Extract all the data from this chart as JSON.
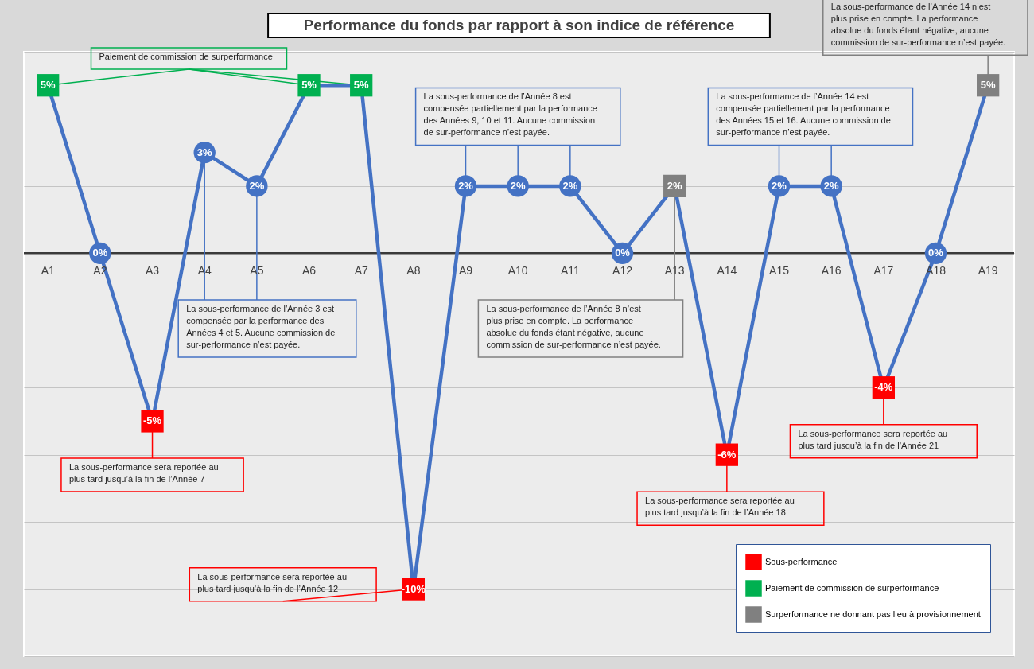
{
  "chart_data": {
    "type": "line",
    "title": "Performance du fonds par rapport à son indice de référence",
    "categories": [
      "A1",
      "A2",
      "A3",
      "A4",
      "A5",
      "A6",
      "A7",
      "A8",
      "A9",
      "A10",
      "A11",
      "A12",
      "A13",
      "A14",
      "A15",
      "A16",
      "A17",
      "A18",
      "A19"
    ],
    "series": [
      {
        "color": "#4472c4",
        "marker": "none",
        "values": [
          5,
          0,
          -5,
          3,
          2,
          5,
          5,
          -10,
          2,
          2,
          2,
          0,
          2,
          -6,
          2,
          2,
          -4,
          0,
          5
        ]
      },
      {
        "type": "scatter",
        "color": "#4472c4",
        "marker": "circle",
        "values": [
          null,
          0,
          null,
          3,
          2,
          null,
          null,
          null,
          2,
          2,
          2,
          0,
          null,
          null,
          2,
          2,
          null,
          0,
          null
        ],
        "value_labels": [
          null,
          "0%",
          null,
          "3%",
          "2%",
          null,
          null,
          null,
          "2%",
          "2%",
          "2%",
          "0%",
          null,
          null,
          "2%",
          "2%",
          null,
          "0%",
          null
        ]
      },
      {
        "type": "scatter",
        "name": "Sous-performance",
        "color": "#ff0000",
        "marker": "square",
        "values": [
          null,
          null,
          -5,
          null,
          null,
          null,
          null,
          -10,
          null,
          null,
          null,
          null,
          null,
          -6,
          null,
          null,
          -4,
          null,
          null
        ],
        "value_labels": [
          null,
          null,
          "-5%",
          null,
          null,
          null,
          null,
          "-10%",
          null,
          null,
          null,
          null,
          null,
          "-6%",
          null,
          null,
          "-4%",
          null,
          null
        ]
      },
      {
        "type": "scatter",
        "name": "Paiement de commission de surperformance",
        "color": "#00b050",
        "marker": "square",
        "values": [
          5,
          null,
          null,
          null,
          null,
          5,
          5,
          null,
          null,
          null,
          null,
          null,
          null,
          null,
          null,
          null,
          null,
          null,
          null
        ],
        "value_labels": [
          "5%",
          null,
          null,
          null,
          null,
          "5%",
          "5%",
          null,
          null,
          null,
          null,
          null,
          null,
          null,
          null,
          null,
          null,
          null,
          null
        ]
      },
      {
        "type": "scatter",
        "name": "Surperformance ne donnant pas lieu à provisionnement",
        "color": "#808080",
        "marker": "square",
        "values": [
          null,
          null,
          null,
          null,
          null,
          null,
          null,
          null,
          null,
          null,
          null,
          null,
          2,
          null,
          null,
          null,
          null,
          null,
          5
        ],
        "value_labels": [
          null,
          null,
          null,
          null,
          null,
          null,
          null,
          null,
          null,
          null,
          null,
          null,
          "2%",
          null,
          null,
          null,
          null,
          null,
          "5%"
        ]
      }
    ],
    "ylim": [
      -12,
      6
    ],
    "yticks": [
      {
        "value": -12,
        "label": null
      },
      {
        "value": -10,
        "label": null
      },
      {
        "value": -8,
        "label": null
      },
      {
        "value": -6,
        "label": null
      },
      {
        "value": -4,
        "label": null
      },
      {
        "value": -2,
        "label": null
      },
      {
        "value": 0,
        "label": null
      },
      {
        "value": 2,
        "label": null
      },
      {
        "value": 4,
        "label": null
      },
      {
        "value": 6,
        "label": null
      }
    ],
    "grid": "y",
    "legend": "bottom right",
    "annotations": [
      "Paiement de commission de surperformance",
      "La sous-performance de l’Année 8 est compensée partiellement par la performance des Années 9, 10 et 11.  Aucune commission de sur-performance n’est payée.",
      "La sous-performance de l’Année 14 n’est plus prise en compte. La performance absolue du fonds étant négative, aucune commission de sur-performance n’est payée.",
      "La sous-performance de l’Année 14 est compensée partiellement par la performance des Années 15 et 16.  Aucune commission de sur-performance n’est payée.",
      "La sous-performance de l’Année 3 est compensée par la performance des Années 4 et 5.  Aucune commission de sur-performance n’est payée.",
      "La sous-performance de l’Année 8 n’est plus prise en compte. La performance absolue du fonds étant négative, aucune commission de sur-performance n’est payée.",
      "La sous-performance sera reportée au plus tard jusqu’à la fin de l’Année 7",
      "La sous-performance sera reportée au plus tard jusqu’à la fin de l’Année 21",
      "La sous-performance sera reportée au plus tard jusqu’à la fin de l’Année 18",
      "La sous-performance sera reportée au plus tard jusqu’à la fin de l’Année 12"
    ]
  }
}
